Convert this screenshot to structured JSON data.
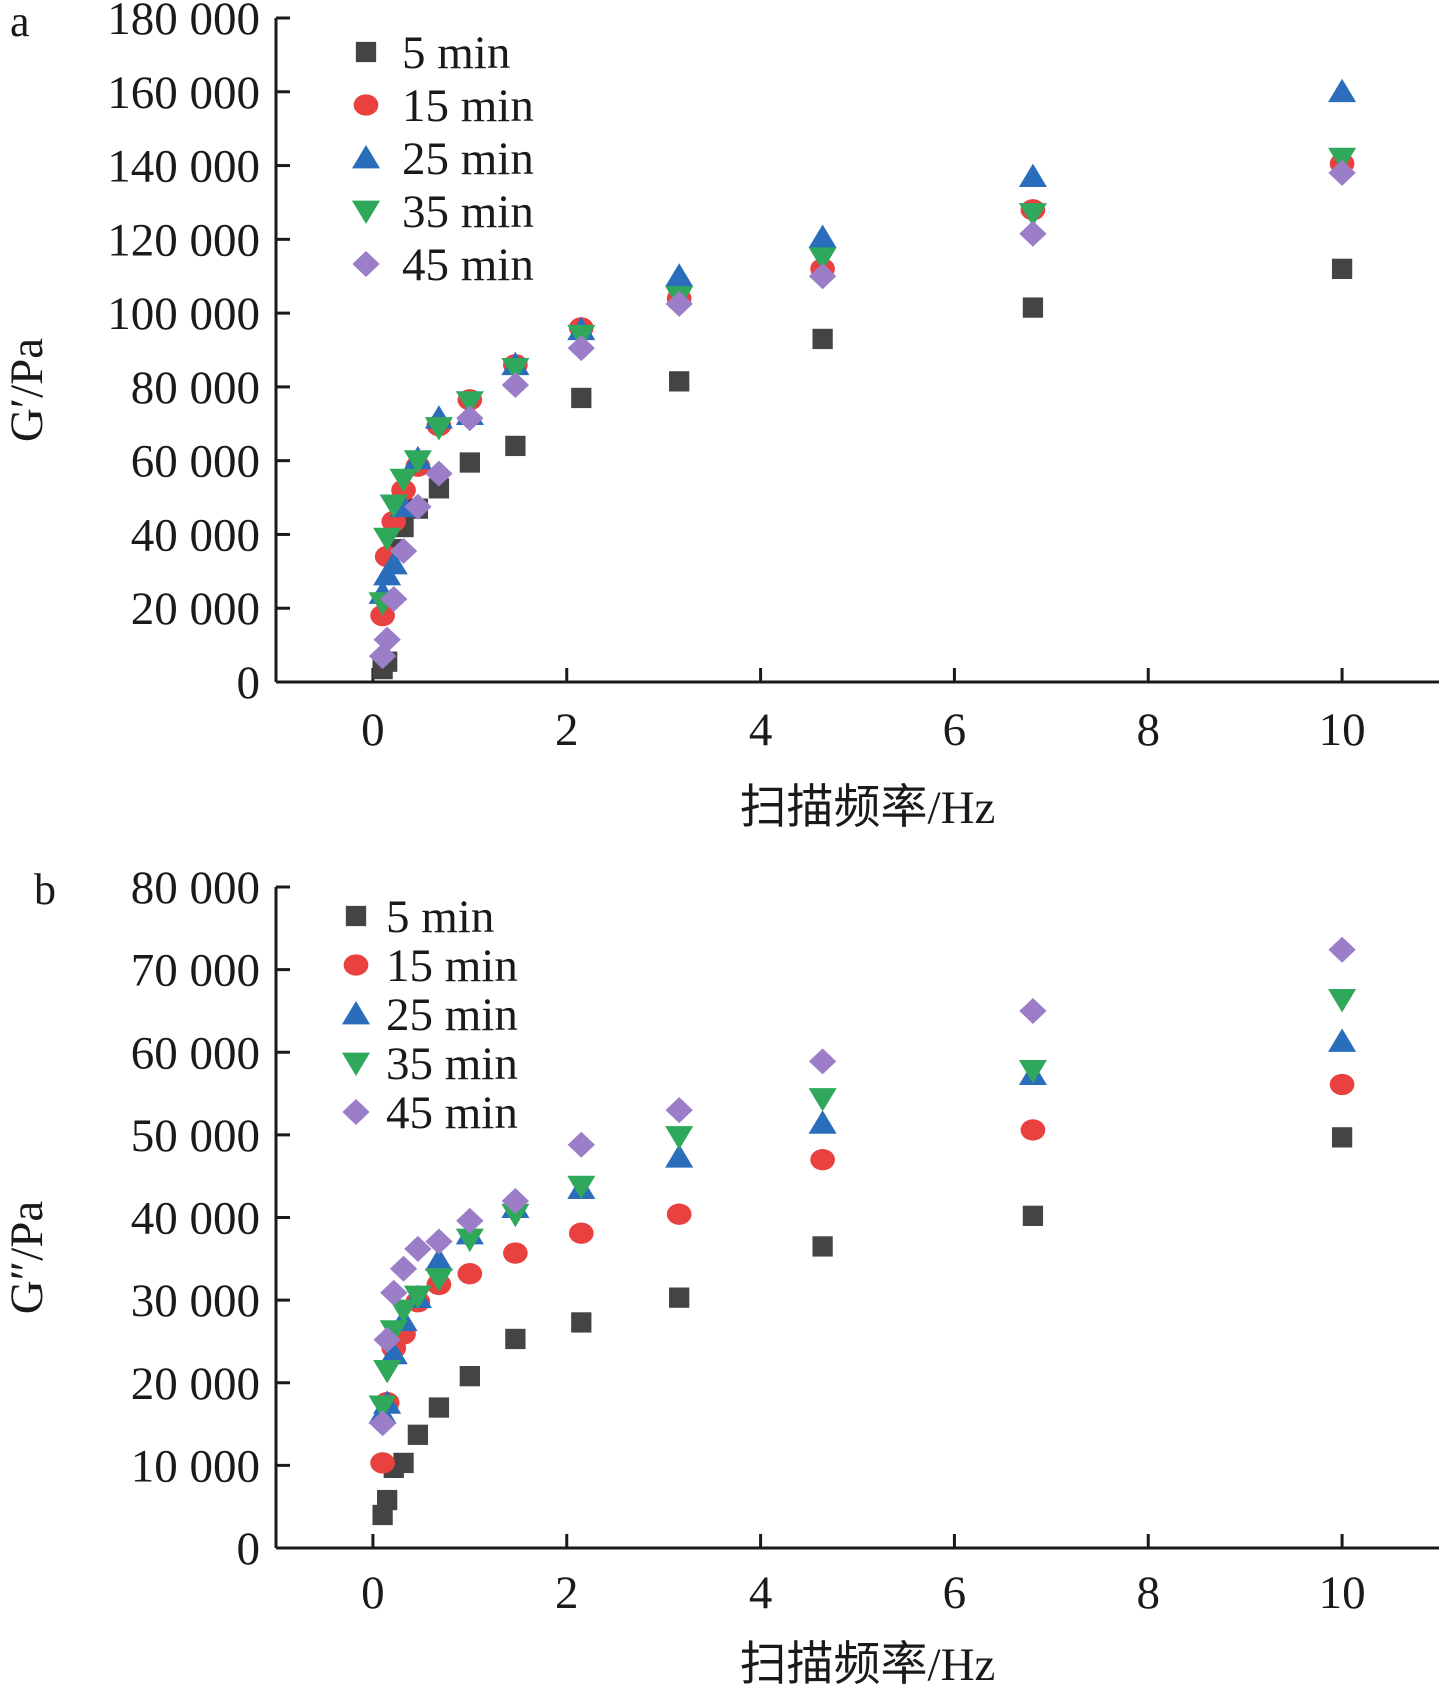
{
  "chart_data": [
    {
      "type": "scatter",
      "panel_label": "a",
      "xlabel": "扫描频率/Hz",
      "ylabel": "G′/Pa",
      "xlim": [
        -1,
        11
      ],
      "ylim": [
        0,
        180000
      ],
      "xticks": [
        0,
        2,
        4,
        6,
        8,
        10
      ],
      "yticks": [
        0,
        20000,
        40000,
        60000,
        80000,
        100000,
        120000,
        140000,
        160000,
        180000
      ],
      "xtick_labels": [
        "0",
        "2",
        "4",
        "6",
        "8",
        "10"
      ],
      "ytick_labels": [
        "0",
        "20 000",
        "40 000",
        "60 000",
        "80 000",
        "100 000",
        "120 000",
        "140 000",
        "160 000",
        "180 000"
      ],
      "x": [
        0.1,
        0.147,
        0.215,
        0.316,
        0.464,
        0.681,
        1.0,
        1.47,
        2.15,
        3.16,
        4.64,
        6.81,
        10.0
      ],
      "grid": false,
      "legend_position": "top-left",
      "series": [
        {
          "name": "5 min",
          "marker": "square",
          "color": "#444444",
          "values": [
            3500,
            5500,
            36000,
            42000,
            47000,
            52500,
            59500,
            64000,
            77000,
            81500,
            93000,
            101500,
            112000
          ]
        },
        {
          "name": "15 min",
          "marker": "circle",
          "color": "#e8413f",
          "values": [
            18000,
            34000,
            43500,
            52000,
            58500,
            69500,
            76500,
            86000,
            96000,
            104000,
            112000,
            128000,
            140500
          ]
        },
        {
          "name": "25 min",
          "marker": "triangle-up",
          "color": "#2a6ebb",
          "values": [
            24000,
            29000,
            32000,
            47500,
            60500,
            71500,
            72500,
            86000,
            95500,
            110000,
            120500,
            137000,
            160000
          ]
        },
        {
          "name": "35 min",
          "marker": "triangle-down",
          "color": "#2fa85c",
          "values": [
            21500,
            39000,
            48000,
            55000,
            60000,
            69000,
            76000,
            85000,
            94000,
            104500,
            115000,
            127000,
            142000
          ]
        },
        {
          "name": "45 min",
          "marker": "diamond",
          "color": "#9b7dc8",
          "values": [
            7000,
            11500,
            22500,
            35500,
            47500,
            56500,
            71500,
            80500,
            90500,
            102500,
            110000,
            121500,
            138000
          ]
        }
      ]
    },
    {
      "type": "scatter",
      "panel_label": "b",
      "xlabel": "扫描频率/Hz",
      "ylabel": "G″/Pa",
      "xlim": [
        -1,
        11
      ],
      "ylim": [
        0,
        80000
      ],
      "xticks": [
        0,
        2,
        4,
        6,
        8,
        10
      ],
      "yticks": [
        0,
        10000,
        20000,
        30000,
        40000,
        50000,
        60000,
        70000,
        80000
      ],
      "xtick_labels": [
        "0",
        "2",
        "4",
        "6",
        "8",
        "10"
      ],
      "ytick_labels": [
        "0",
        "10 000",
        "20 000",
        "30 000",
        "40 000",
        "50 000",
        "60 000",
        "70 000",
        "80 000"
      ],
      "x": [
        0.1,
        0.147,
        0.215,
        0.316,
        0.464,
        0.681,
        1.0,
        1.47,
        2.15,
        3.16,
        4.64,
        6.81,
        10.0
      ],
      "grid": false,
      "legend_position": "top-left",
      "series": [
        {
          "name": "5 min",
          "marker": "square",
          "color": "#444444",
          "values": [
            4000,
            5800,
            9700,
            10300,
            13700,
            17000,
            20800,
            25300,
            27300,
            30300,
            36500,
            40200,
            49700
          ]
        },
        {
          "name": "15 min",
          "marker": "circle",
          "color": "#e8413f",
          "values": [
            10300,
            17600,
            24200,
            25900,
            29800,
            31900,
            33200,
            35700,
            38100,
            40400,
            47000,
            50600,
            56100
          ]
        },
        {
          "name": "25 min",
          "marker": "triangle-up",
          "color": "#2a6ebb",
          "values": [
            16300,
            17500,
            23500,
            27500,
            30300,
            34800,
            38000,
            41200,
            43500,
            47300,
            51400,
            57300,
            61300
          ]
        },
        {
          "name": "35 min",
          "marker": "triangle-down",
          "color": "#2fa85c",
          "values": [
            17200,
            21500,
            26300,
            28800,
            30500,
            32600,
            37400,
            40400,
            43800,
            49800,
            54400,
            57800,
            66400
          ]
        },
        {
          "name": "45 min",
          "marker": "diamond",
          "color": "#9b7dc8",
          "values": [
            15100,
            25200,
            30900,
            33800,
            36200,
            37100,
            39600,
            42000,
            48800,
            53000,
            58900,
            65000,
            72400
          ]
        }
      ]
    }
  ]
}
